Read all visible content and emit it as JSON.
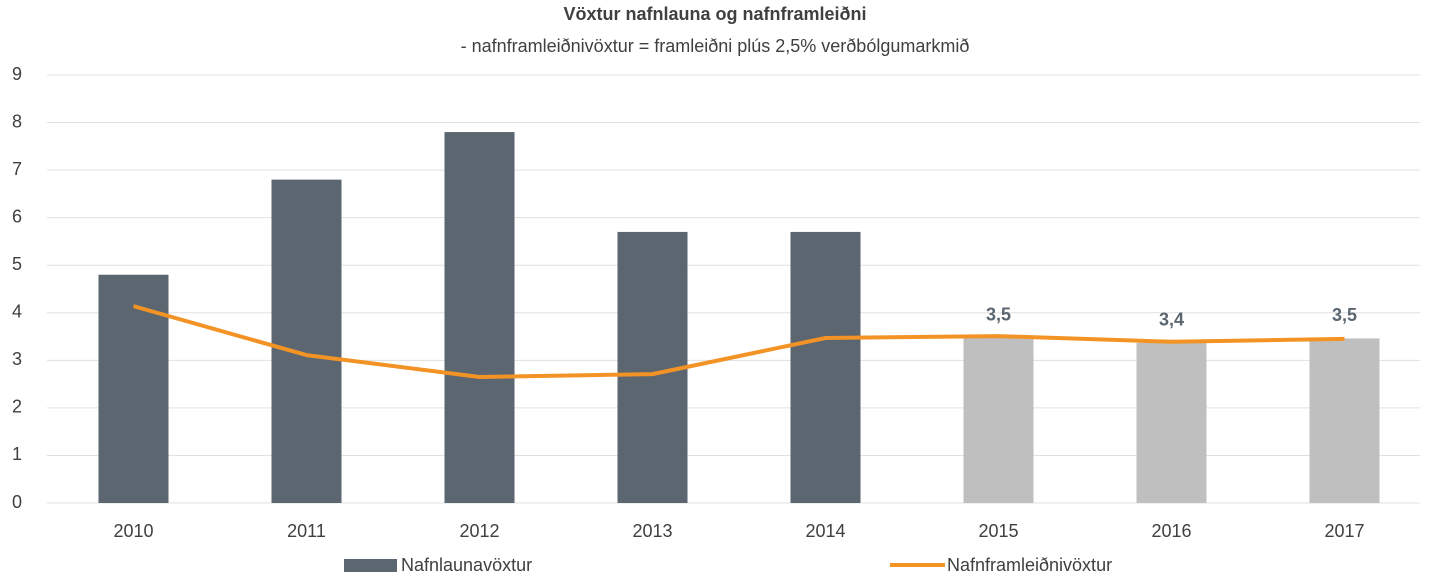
{
  "chart_data": {
    "type": "bar",
    "title": "Vöxtur nafnlauna og nafnframleiðni",
    "subtitle": "- nafnframleiðnivöxtur = framleiðni plús 2,5% verðbólgumarkmið",
    "categories": [
      "2010",
      "2011",
      "2012",
      "2013",
      "2014",
      "2015",
      "2016",
      "2017"
    ],
    "series": [
      {
        "name": "Nafnlaunavöxtur",
        "type": "bar",
        "color": "#5b6670",
        "colors": [
          "#5b6670",
          "#5b6670",
          "#5b6670",
          "#5b6670",
          "#5b6670",
          "#bfbfbf",
          "#bfbfbf",
          "#bfbfbf"
        ],
        "values": [
          4.8,
          6.8,
          7.8,
          5.7,
          5.7,
          3.47,
          3.37,
          3.46
        ],
        "value_labels": [
          null,
          null,
          null,
          null,
          null,
          "3,5",
          "3,4",
          "3,5"
        ]
      },
      {
        "name": "Nafnframleiðnivöxtur",
        "type": "line",
        "color": "#f39325",
        "values": [
          4.14,
          3.11,
          2.65,
          2.71,
          3.47,
          3.51,
          3.39,
          3.45
        ]
      }
    ],
    "ylim": [
      0,
      9
    ],
    "yticks": [
      0,
      1,
      2,
      3,
      4,
      5,
      6,
      7,
      8,
      9
    ],
    "grid": true,
    "legend": "bottom"
  }
}
